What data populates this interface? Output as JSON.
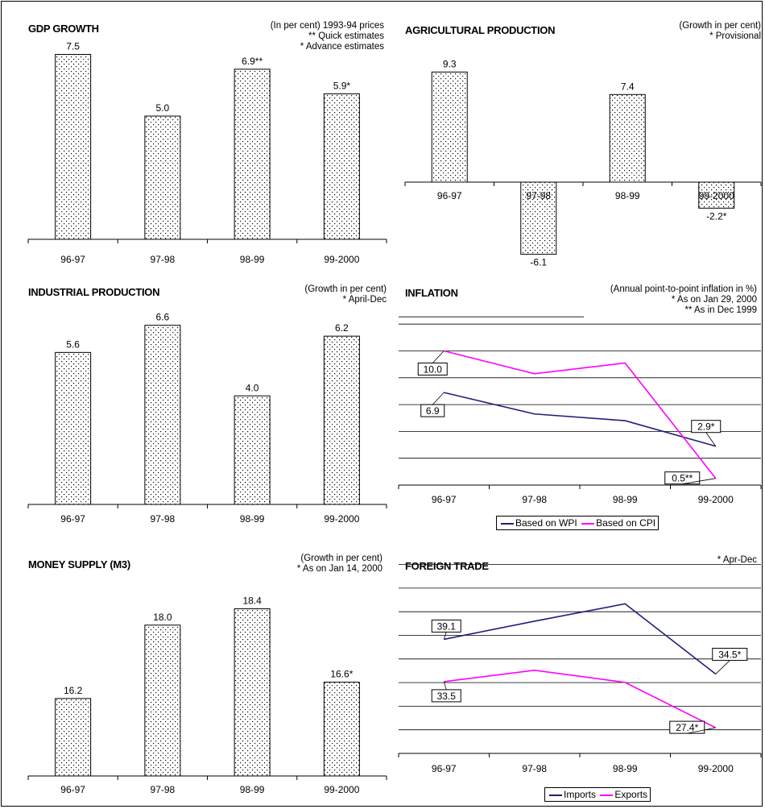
{
  "colors": {
    "wpi": "#1f1f7a",
    "cpi": "#ff00ff",
    "imports": "#1f1f7a",
    "exports": "#ff00ff"
  },
  "chart_data": [
    {
      "id": "gdp",
      "type": "bar",
      "title": "GDP GROWTH",
      "note": "(In per cent) 1993-94 prices\n** Quick estimates\n* Advance estimates",
      "categories": [
        "96-97",
        "97-98",
        "98-99",
        "99-2000"
      ],
      "values": [
        7.5,
        5.0,
        6.9,
        5.9
      ],
      "data_labels": [
        "7.5",
        "5.0",
        "6.9**",
        "5.9*"
      ],
      "ylim": [
        0,
        8.4
      ]
    },
    {
      "id": "agri",
      "type": "bar",
      "title": "AGRICULTURAL PRODUCTION",
      "note": "(Growth in per cent)\n* Provisional",
      "categories": [
        "96-97",
        "97-98",
        "98-99",
        "99-2000"
      ],
      "values": [
        9.3,
        -6.1,
        7.4,
        -2.2
      ],
      "data_labels": [
        "9.3",
        "-6.1",
        "7.4",
        "-2.2*"
      ],
      "ylim": [
        -7.4,
        11.3
      ]
    },
    {
      "id": "industrial",
      "type": "bar",
      "title": "INDUSTRIAL PRODUCTION",
      "note": "(Growth in per cent)\n* April-Dec",
      "categories": [
        "96-97",
        "97-98",
        "98-99",
        "99-2000"
      ],
      "values": [
        5.6,
        6.6,
        4.0,
        6.2
      ],
      "data_labels": [
        "5.6",
        "6.6",
        "4.0",
        "6.2"
      ],
      "ylim": [
        0,
        7.6
      ]
    },
    {
      "id": "inflation",
      "type": "line",
      "title": "INFLATION",
      "note": "(Annual point-to-point inflation in %)\n* As on Jan 29, 2000\n** As in Dec 1999",
      "categories": [
        "96-97",
        "97-98",
        "98-99",
        "99-2000"
      ],
      "series": [
        {
          "name": "Based on WPI",
          "values": [
            6.9,
            5.3,
            4.8,
            2.9
          ]
        },
        {
          "name": "Based on CPI",
          "values": [
            10.0,
            8.3,
            9.1,
            0.5
          ]
        }
      ],
      "callouts": [
        {
          "series": 1,
          "index": 0,
          "text": "10.0"
        },
        {
          "series": 0,
          "index": 0,
          "text": "6.9"
        },
        {
          "series": 0,
          "index": 3,
          "text": "2.9*"
        },
        {
          "series": 1,
          "index": 3,
          "text": "0.5**"
        }
      ],
      "ylim": [
        0,
        12
      ],
      "grid": true,
      "legend": "bottom"
    },
    {
      "id": "money",
      "type": "bar",
      "title": "MONEY SUPPLY (M3)",
      "note": "(Growth in per cent)\n* As on Jan 14, 2000",
      "categories": [
        "96-97",
        "97-98",
        "98-99",
        "99-2000"
      ],
      "values": [
        16.2,
        18.0,
        18.4,
        16.6
      ],
      "data_labels": [
        "16.2",
        "18.0",
        "18.4",
        "16.6*"
      ],
      "ylim": [
        14.3,
        19.3
      ]
    },
    {
      "id": "trade",
      "type": "line",
      "title": "FOREIGN TRADE",
      "note": "* Apr-Dec",
      "categories": [
        "96-97",
        "97-98",
        "98-99",
        "99-2000"
      ],
      "series": [
        {
          "name": "Imports",
          "values": [
            39.1,
            41.5,
            43.8,
            34.5
          ]
        },
        {
          "name": "Exports",
          "values": [
            33.5,
            35.0,
            33.4,
            27.4
          ]
        }
      ],
      "callouts": [
        {
          "series": 0,
          "index": 0,
          "text": "39.1"
        },
        {
          "series": 1,
          "index": 0,
          "text": "33.5"
        },
        {
          "series": 0,
          "index": 3,
          "text": "34.5*"
        },
        {
          "series": 1,
          "index": 3,
          "text": "27.4*"
        }
      ],
      "ylim": [
        24,
        49
      ],
      "grid": true,
      "legend": "bottom"
    }
  ]
}
